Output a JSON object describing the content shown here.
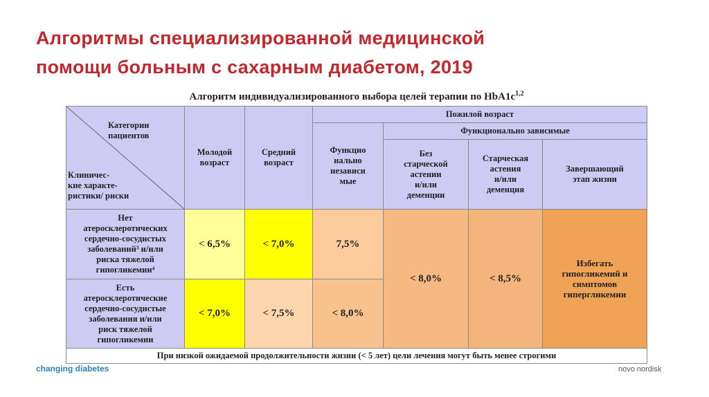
{
  "title": "Алгоритмы специализированной медицинской\nпомощи больным с сахарным диабетом, 2019",
  "table": {
    "caption": "Алгоритм индивидуализированного выбора целей терапии по HbA1c",
    "caption_sup": "1,2",
    "header": {
      "corner_top": "Категории\nпациентов",
      "corner_bottom": "Клиничес-\nкие характе-\nристики/ риски",
      "young": "Молодой\nвозраст",
      "middle": "Средний\nвозраст",
      "elderly": "Пожилой возраст",
      "independent": "Функцио\nнально\nнезависи\nмые",
      "dependent": "Функционально зависимые",
      "no_asthenia": "Без\nстарческой\nастении\nи/или\nдеменции",
      "asthenia": "Старческая\nастения\nи/или\nдеменция",
      "end_of_life": "Завершающий\nэтап жизни"
    },
    "rows": [
      {
        "label": "Нет\nатеросклеротических\nсердечно-сосудистых\nзаболеваний³ и/или\nриска тяжелой\nгипогликемии⁴",
        "young": "< 6,5%",
        "middle": "< 7,0%",
        "independent": "7,5%"
      },
      {
        "label": "Есть\nатеросклеротические\nсердечно-сосудистые\nзаболевания и/или\nриск тяжелой\nгипогликемии",
        "young": "< 7,0%",
        "middle": "< 7,5%",
        "independent": "< 8,0%"
      }
    ],
    "no_asthenia_value": "< 8,0%",
    "asthenia_value": "< 8,5%",
    "end_of_life_value": "Избегать\nгипогликемий и\nсимптомов\nгипергликемии",
    "footnote": "При низкой ожидаемой продолжительности жизни (< 5 лет) цели лечения могут быть менее строгими"
  },
  "footer": {
    "left": "changing diabetes",
    "right": "novo nordisk"
  }
}
